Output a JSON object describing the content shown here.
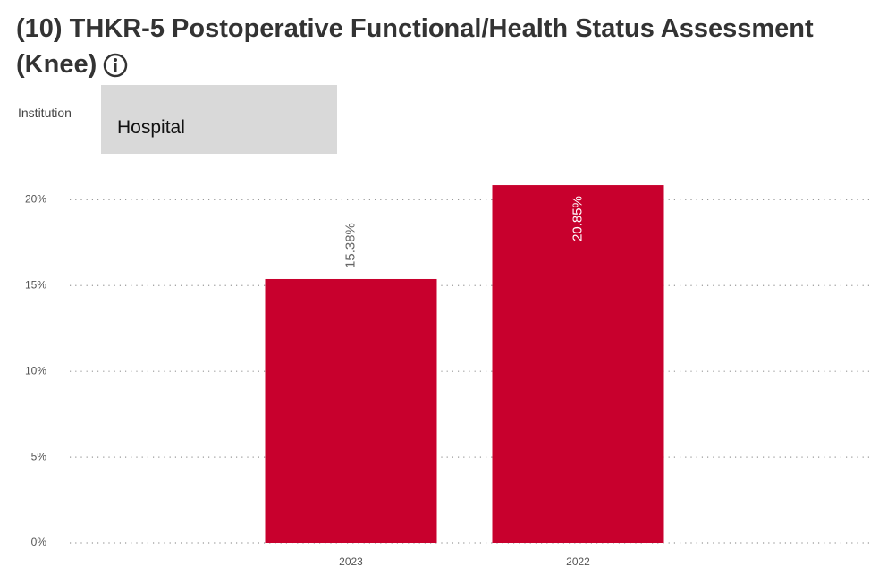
{
  "header": {
    "title": "(10) THKR-5 Postoperative Functional/Health Status Assessment (Knee)"
  },
  "filter": {
    "label": "Institution",
    "value": "Hospital"
  },
  "chart_data": {
    "type": "bar",
    "categories": [
      "2023",
      "2022"
    ],
    "values": [
      15.38,
      20.85
    ],
    "value_labels": [
      "15.38%",
      "20.85%"
    ],
    "color": "#c8002d",
    "ylim": [
      0,
      22
    ],
    "yticks": [
      {
        "value": 0,
        "label": "0%"
      },
      {
        "value": 5,
        "label": "5%"
      },
      {
        "value": 10,
        "label": "10%"
      },
      {
        "value": 15,
        "label": "15%"
      },
      {
        "value": 20,
        "label": "20%"
      }
    ],
    "grid": true
  }
}
